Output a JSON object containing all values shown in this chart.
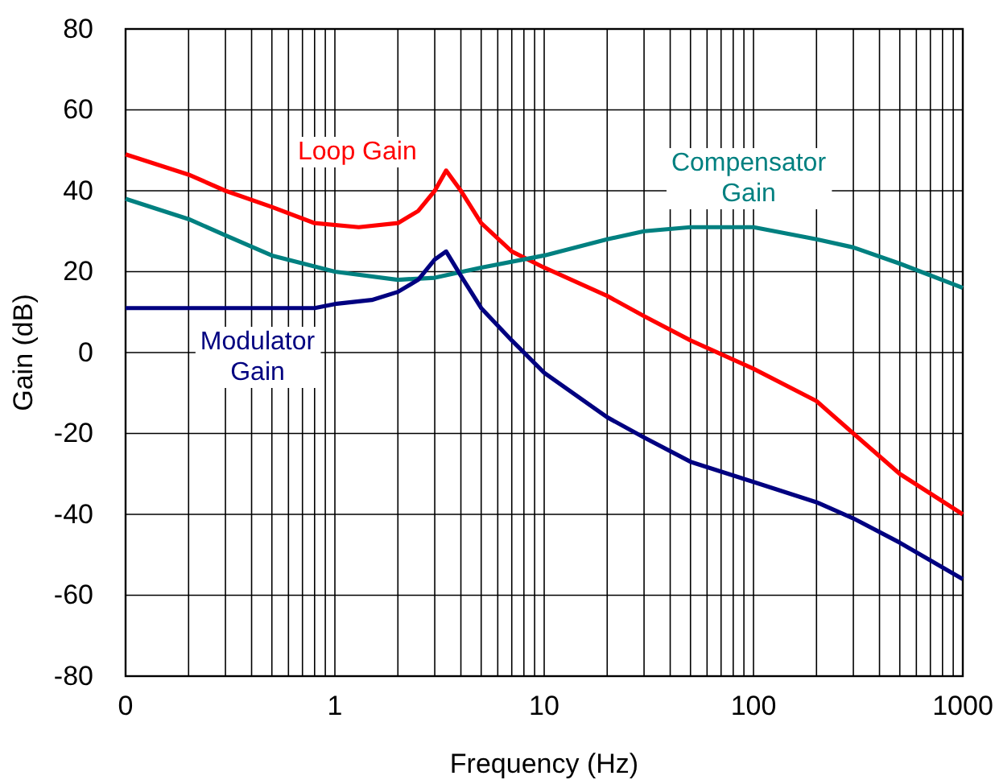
{
  "chart_data": {
    "type": "line",
    "xlabel": "Frequency (Hz)",
    "ylabel": "Gain (dB)",
    "log": "x",
    "grid": true,
    "marker": "none",
    "line_style": "solid",
    "xlim": [
      0.1,
      1000
    ],
    "xticks": [
      {
        "value": 0.1,
        "label": "0"
      },
      1,
      10,
      100,
      1000
    ],
    "ylim": [
      -80,
      80
    ],
    "yticks": [
      -80,
      -60,
      -40,
      -20,
      0,
      20,
      40,
      60,
      80
    ],
    "series": [
      {
        "name": "Loop Gain",
        "color": "#ff0000",
        "x": [
          0.1,
          0.2,
          0.3,
          0.5,
          0.8,
          1.3,
          2,
          2.5,
          3,
          3.4,
          4,
          5,
          7,
          10,
          20,
          30,
          50,
          100,
          200,
          300,
          500,
          1000
        ],
        "values": [
          49,
          44,
          40,
          36,
          32,
          31,
          32,
          35,
          40,
          45,
          40,
          32,
          25,
          21,
          14,
          9,
          3,
          -4,
          -12,
          -20,
          -30,
          -40
        ]
      },
      {
        "name": "Compensator Gain",
        "color": "#008080",
        "x": [
          0.1,
          0.2,
          0.3,
          0.5,
          1,
          2,
          3,
          5,
          10,
          20,
          30,
          50,
          100,
          200,
          300,
          500,
          1000
        ],
        "values": [
          38,
          33,
          29,
          24,
          20,
          18,
          18.5,
          21,
          24,
          28,
          30,
          31,
          31,
          28,
          26,
          22,
          16
        ]
      },
      {
        "name": "Modulator Gain",
        "color": "#000080",
        "x": [
          0.1,
          0.5,
          0.8,
          1,
          1.5,
          2,
          2.5,
          3,
          3.4,
          4,
          5,
          7,
          10,
          20,
          30,
          50,
          100,
          200,
          300,
          500,
          1000
        ],
        "values": [
          11,
          11,
          11,
          12,
          13,
          15,
          18,
          23,
          25,
          19,
          11,
          3,
          -5,
          -16,
          -21,
          -27,
          -32,
          -37,
          -41,
          -47,
          -56
        ]
      }
    ]
  }
}
